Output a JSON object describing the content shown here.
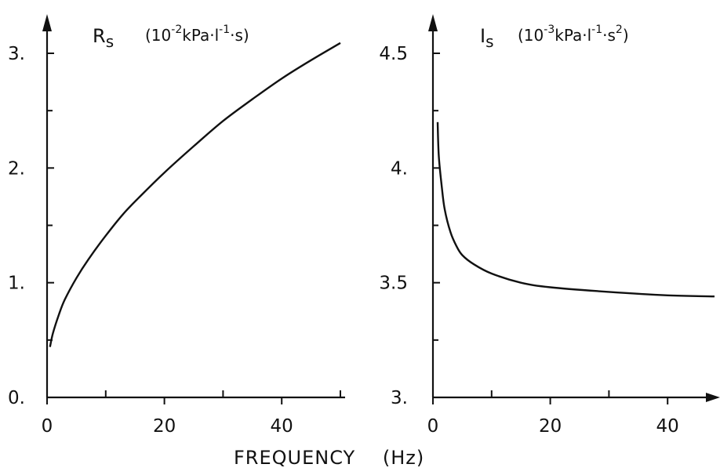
{
  "chart_data": [
    {
      "type": "line",
      "ylabel_symbol": "R",
      "ylabel_subscript": "s",
      "ylabel_unit": {
        "open": "(10",
        "exp": "-2",
        "mid": "kPa·l",
        "exp2": "-1",
        "tail": "·s)"
      },
      "xlim": [
        0,
        50
      ],
      "ylim": [
        0,
        3
      ],
      "x_ticks": [
        0,
        20,
        40
      ],
      "x_minor_ticks": [
        10,
        30,
        50
      ],
      "y_ticks": [
        {
          "value": 0,
          "label": "0."
        },
        {
          "value": 1,
          "label": "1."
        },
        {
          "value": 2,
          "label": "2."
        },
        {
          "value": 3,
          "label": "3."
        }
      ],
      "y_minor_ticks": [
        0.5,
        1.5,
        2.5
      ],
      "series": [
        {
          "x": [
            0.5,
            1,
            2,
            3,
            5,
            7,
            10,
            13,
            16,
            20,
            25,
            30,
            35,
            40,
            45,
            50
          ],
          "values": [
            0.44,
            0.56,
            0.72,
            0.85,
            1.04,
            1.2,
            1.41,
            1.6,
            1.76,
            1.96,
            2.19,
            2.41,
            2.6,
            2.78,
            2.94,
            3.09
          ]
        }
      ]
    },
    {
      "type": "line",
      "ylabel_symbol": "I",
      "ylabel_subscript": "s",
      "ylabel_unit": {
        "open": "(10",
        "exp": "-3",
        "mid": "kPa·l",
        "exp2": "-1",
        "tail": "·s",
        "exp3": "2",
        "close": ")"
      },
      "xlim": [
        0,
        50
      ],
      "ylim": [
        3,
        4.5
      ],
      "x_ticks": [
        0,
        20,
        40
      ],
      "x_minor_ticks": [
        10,
        30
      ],
      "y_ticks": [
        {
          "value": 3,
          "label": "3."
        },
        {
          "value": 3.5,
          "label": "3.5"
        },
        {
          "value": 4,
          "label": "4."
        },
        {
          "value": 4.5,
          "label": "4.5"
        }
      ],
      "y_minor_ticks": [
        3.25,
        3.75,
        4.25
      ],
      "series": [
        {
          "x": [
            0.8,
            1,
            1.5,
            2,
            3,
            4,
            5,
            7,
            10,
            15,
            20,
            30,
            40,
            48
          ],
          "values": [
            4.2,
            4.05,
            3.92,
            3.82,
            3.72,
            3.66,
            3.62,
            3.58,
            3.54,
            3.5,
            3.48,
            3.46,
            3.445,
            3.44
          ]
        }
      ]
    }
  ],
  "xlabel": "FREQUENCY",
  "xlabel_unit": "(Hz)"
}
